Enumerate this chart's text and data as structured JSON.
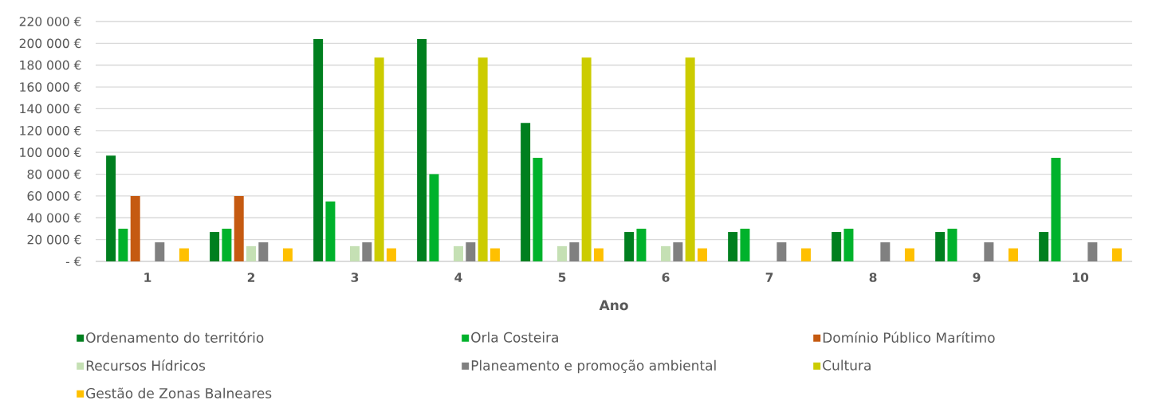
{
  "chart_data": {
    "type": "bar",
    "xlabel": "Ano",
    "categories": [
      "1",
      "2",
      "3",
      "4",
      "5",
      "6",
      "7",
      "8",
      "9",
      "10"
    ],
    "series": [
      {
        "name": "Ordenamento do território",
        "color": "#007f1f",
        "values": [
          97000,
          27000,
          204000,
          204000,
          127000,
          27000,
          27000,
          27000,
          27000,
          27000
        ]
      },
      {
        "name": "Orla Costeira",
        "color": "#00b22c",
        "values": [
          30000,
          30000,
          55000,
          80000,
          95000,
          30000,
          30000,
          30000,
          30000,
          95000
        ]
      },
      {
        "name": "Domínio Público Marítimo",
        "color": "#c55a11",
        "values": [
          60000,
          60000,
          null,
          null,
          null,
          null,
          null,
          null,
          null,
          null
        ]
      },
      {
        "name": "Recursos Hídricos",
        "color": "#c5e0b4",
        "values": [
          null,
          14000,
          14000,
          14000,
          14000,
          14000,
          null,
          null,
          null,
          null
        ]
      },
      {
        "name": "Planeamento e promoção ambiental",
        "color": "#808080",
        "values": [
          17500,
          17500,
          17500,
          17500,
          17500,
          17500,
          17500,
          17500,
          17500,
          17500
        ]
      },
      {
        "name": "Cultura",
        "color": "#cccc00",
        "values": [
          null,
          null,
          187000,
          187000,
          187000,
          187000,
          null,
          null,
          null,
          null
        ]
      },
      {
        "name": "Gestão de Zonas Balneares",
        "color": "#ffc000",
        "values": [
          12000,
          12000,
          12000,
          12000,
          12000,
          12000,
          12000,
          12000,
          12000,
          12000
        ]
      }
    ],
    "ylim": [
      0,
      220000
    ],
    "yticks": [
      {
        "value": 0,
        "label": "- €"
      },
      {
        "value": 20000,
        "label": "20 000 €"
      },
      {
        "value": 40000,
        "label": "40 000 €"
      },
      {
        "value": 60000,
        "label": "60 000 €"
      },
      {
        "value": 80000,
        "label": "80 000 €"
      },
      {
        "value": 100000,
        "label": "100 000 €"
      },
      {
        "value": 120000,
        "label": "120 000 €"
      },
      {
        "value": 140000,
        "label": "140 000 €"
      },
      {
        "value": 160000,
        "label": "160 000 €"
      },
      {
        "value": 180000,
        "label": "180 000 €"
      },
      {
        "value": 200000,
        "label": "200 000 €"
      },
      {
        "value": 220000,
        "label": "220 000 €"
      }
    ],
    "grid": "y",
    "legend": "bottom"
  }
}
